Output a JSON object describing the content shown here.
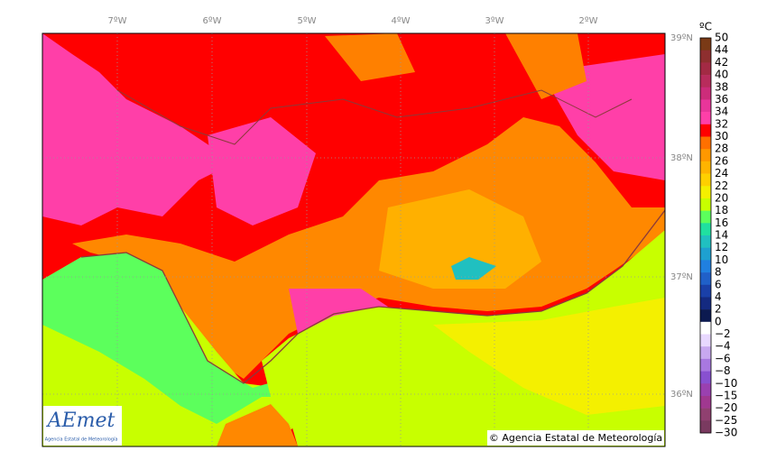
{
  "map": {
    "longitude_labels": [
      "7ºW",
      "6ºW",
      "5ºW",
      "4ºW",
      "3ºW",
      "2ºW"
    ],
    "latitude_labels": [
      "39ºN",
      "38ºN",
      "37ºN",
      "36ºN"
    ],
    "colorbar": {
      "unit": "ºC",
      "labels": [
        "50",
        "44",
        "42",
        "40",
        "38",
        "36",
        "34",
        "32",
        "30",
        "28",
        "26",
        "24",
        "22",
        "20",
        "18",
        "16",
        "14",
        "12",
        "10",
        "8",
        "6",
        "4",
        "2",
        "0",
        "−2",
        "−4",
        "−6",
        "−8",
        "−10",
        "−15",
        "−20",
        "−25",
        "−30"
      ]
    },
    "logo": {
      "name": "AEmet",
      "subtitle": "Agencia Estatal de Meteorología"
    },
    "copyright": "© Agencia Estatal de Meteorología"
  }
}
